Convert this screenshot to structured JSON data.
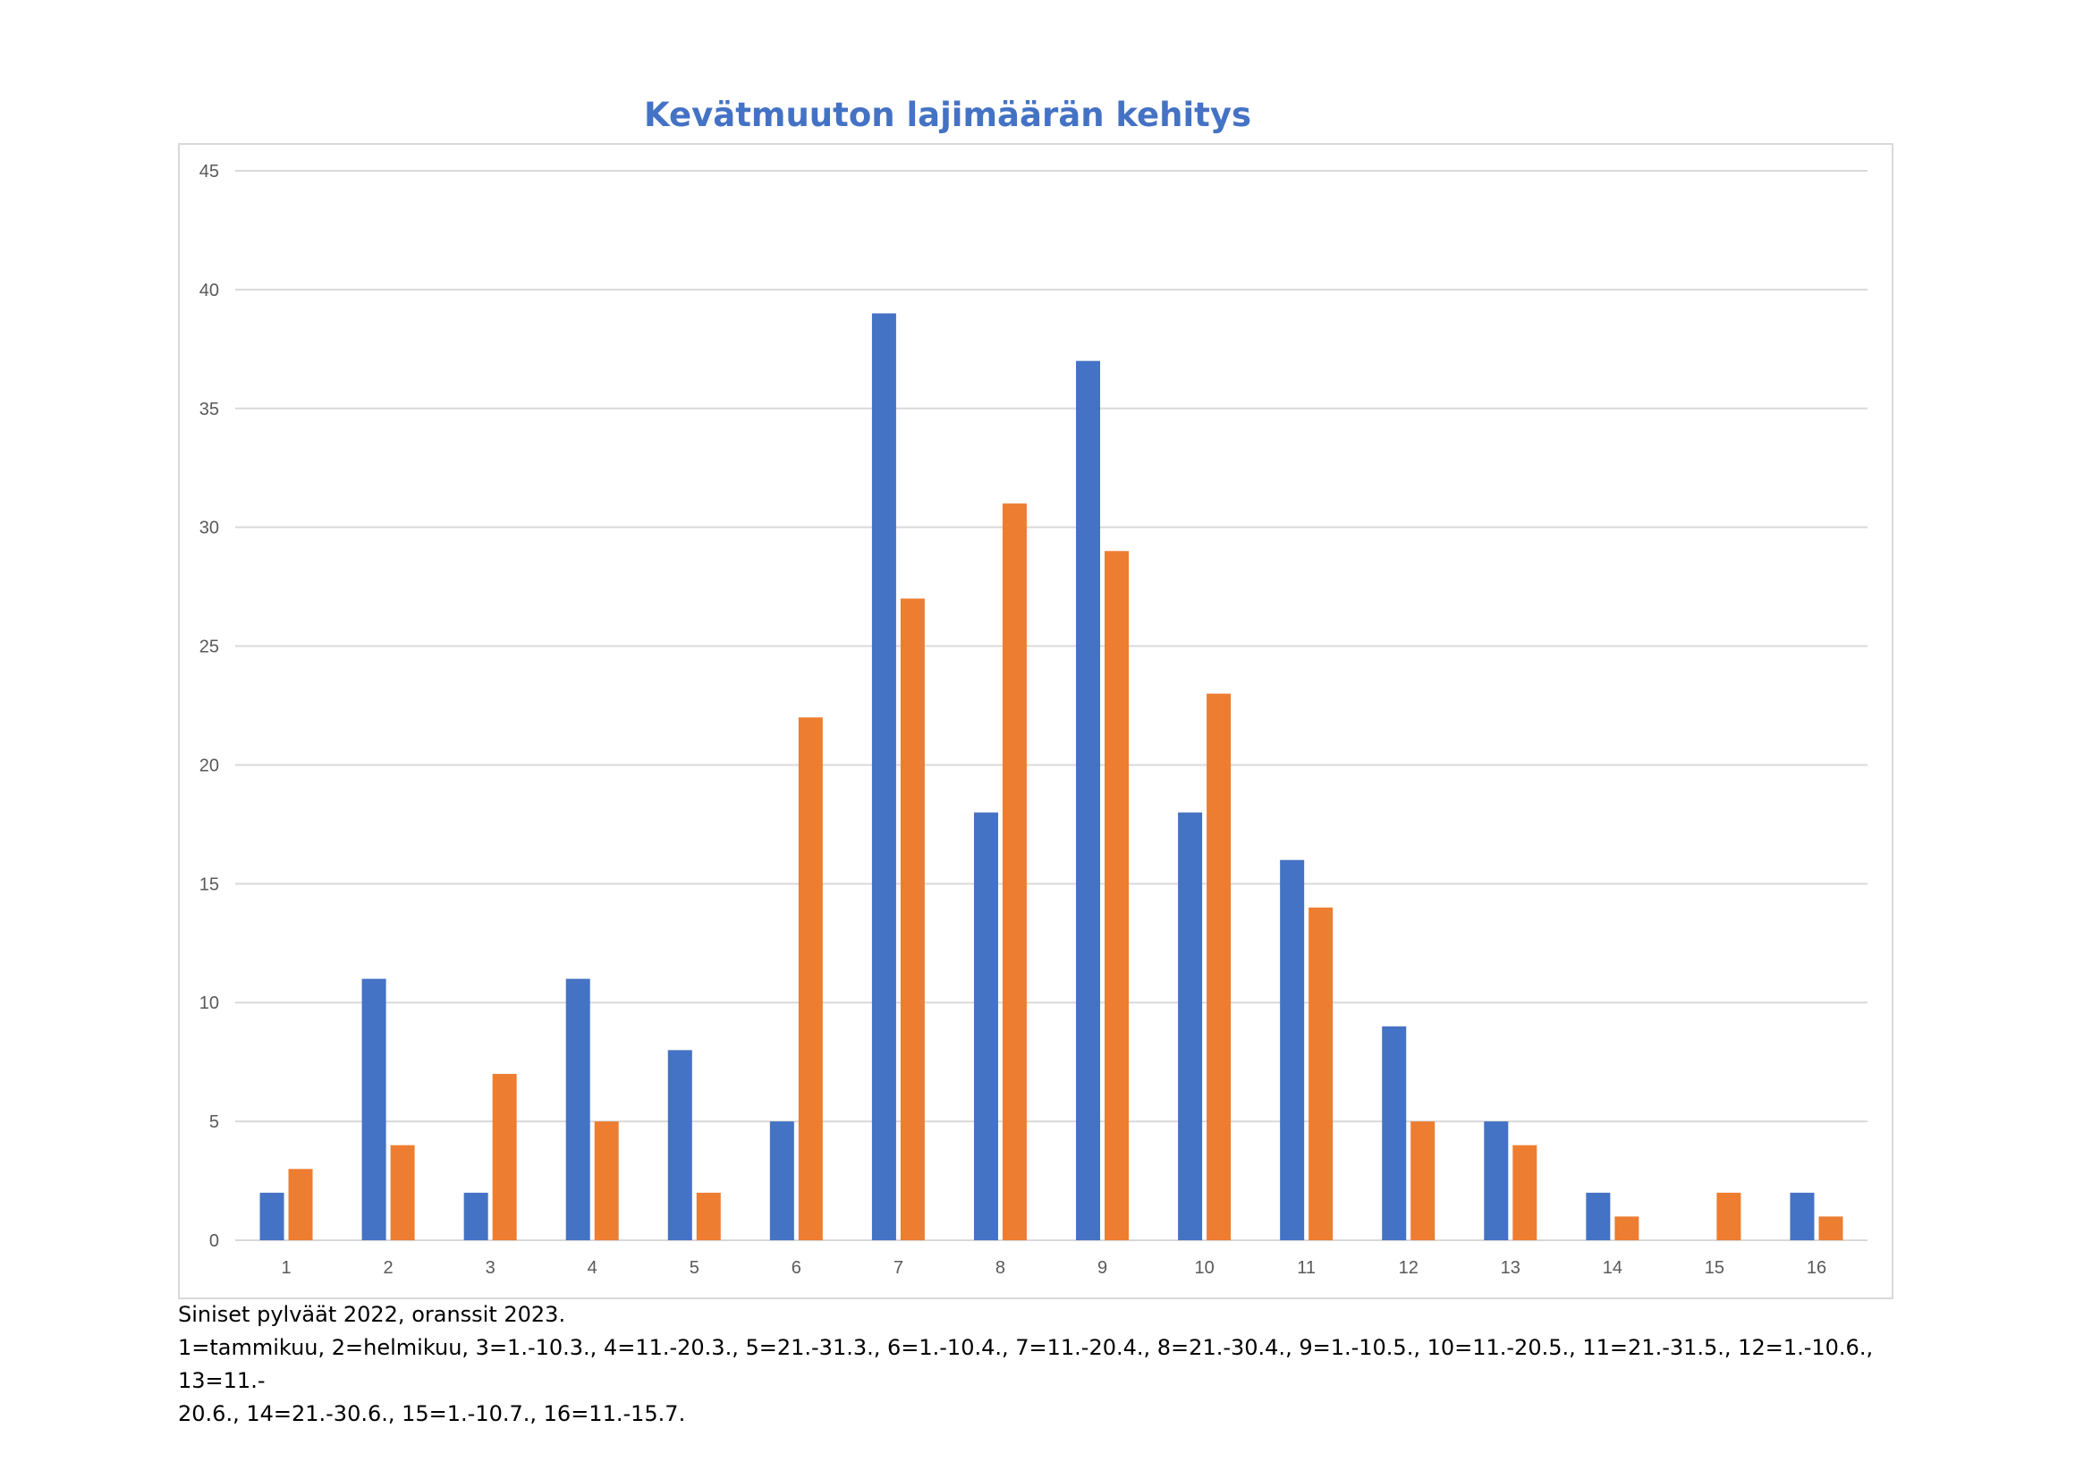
{
  "chart_data": {
    "type": "bar",
    "title": "Kevätmuuton lajimäärän kehitys",
    "categories": [
      "1",
      "2",
      "3",
      "4",
      "5",
      "6",
      "7",
      "8",
      "9",
      "10",
      "11",
      "12",
      "13",
      "14",
      "15",
      "16"
    ],
    "series": [
      {
        "color": "#4472c4",
        "values": [
          2,
          11,
          2,
          11,
          8,
          5,
          39,
          18,
          37,
          18,
          16,
          9,
          5,
          2,
          0,
          2
        ]
      },
      {
        "color": "#ed7d31",
        "values": [
          3,
          4,
          7,
          5,
          2,
          22,
          27,
          31,
          29,
          23,
          14,
          5,
          4,
          1,
          2,
          1
        ]
      }
    ],
    "ylim": [
      0,
      45
    ],
    "yticks": [
      0,
      5,
      10,
      15,
      20,
      25,
      30,
      35,
      40,
      45
    ],
    "grid": true,
    "gridline_color": "#d9d9d9"
  },
  "caption": {
    "line1": "Siniset pylväät 2022, oranssit 2023.",
    "line2": "1=tammikuu, 2=helmikuu, 3=1.-10.3., 4=11.-20.3., 5=21.-31.3., 6=1.-10.4., 7=11.-20.4., 8=21.-30.4., 9=1.-10.5., 10=11.-20.5., 11=21.-31.5., 12=1.-10.6., 13=11.-",
    "line3": "20.6., 14=21.-30.6., 15=1.-10.7., 16=11.-15.7."
  }
}
